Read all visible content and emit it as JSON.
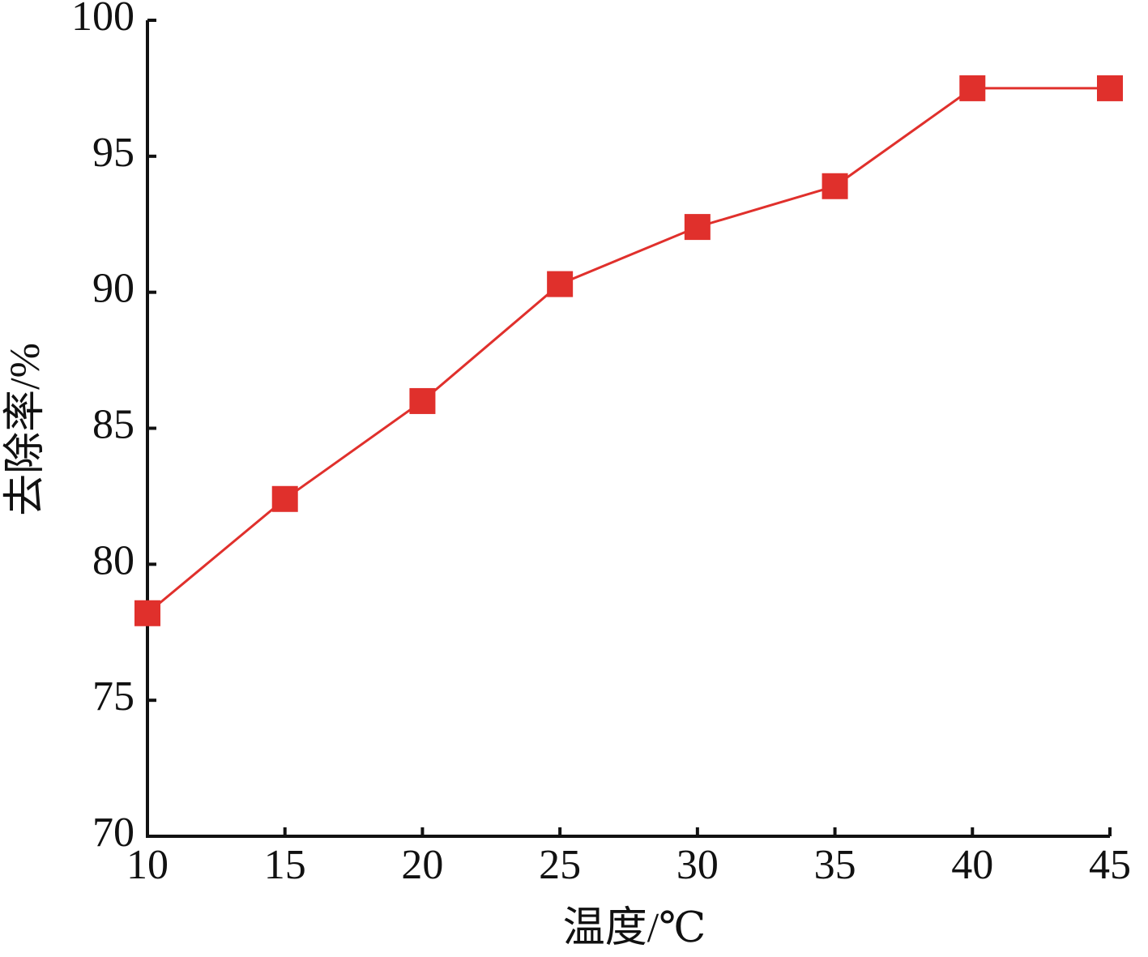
{
  "chart_data": {
    "type": "line",
    "xlabel": "温度/℃",
    "ylabel": "去除率/%",
    "x": [
      10,
      15,
      20,
      25,
      30,
      35,
      40,
      45
    ],
    "series": [
      {
        "color": "#e0302c",
        "values": [
          78.2,
          82.4,
          86.0,
          90.3,
          92.4,
          93.9,
          97.5,
          97.5
        ]
      }
    ],
    "xlim": [
      10,
      45
    ],
    "xticks": [
      10,
      15,
      20,
      25,
      30,
      35,
      40,
      45
    ],
    "ylim": [
      70,
      100
    ],
    "yticks": [
      70,
      75,
      80,
      85,
      90,
      95,
      100
    ],
    "grid": false,
    "marker": "square"
  }
}
